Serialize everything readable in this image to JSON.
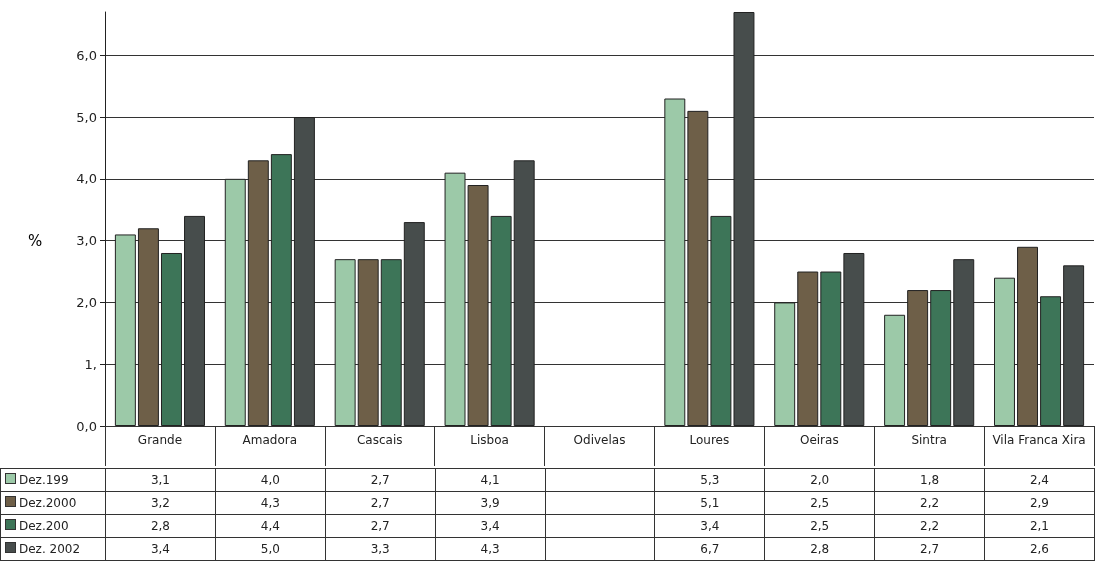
{
  "chart_data": {
    "type": "bar",
    "ylabel": "%",
    "categories": [
      "Grande",
      "Amadora",
      "Cascais",
      "Lisboa",
      "Odivelas",
      "Loures",
      "Oeiras",
      "Sintra",
      "Vila Franca Xira"
    ],
    "series": [
      {
        "name": "Dez.199",
        "color": "#9cc9a8",
        "values": [
          3.1,
          4.0,
          2.7,
          4.1,
          null,
          5.3,
          2.0,
          1.8,
          2.4
        ],
        "value_labels": [
          "3,1",
          "4,0",
          "2,7",
          "4,1",
          null,
          "5,3",
          "2,0",
          "1,8",
          "2,4"
        ]
      },
      {
        "name": "Dez.2000",
        "color": "#6e5f48",
        "values": [
          3.2,
          4.3,
          2.7,
          3.9,
          null,
          5.1,
          2.5,
          2.2,
          2.9
        ],
        "value_labels": [
          "3,2",
          "4,3",
          "2,7",
          "3,9",
          null,
          "5,1",
          "2,5",
          "2,2",
          "2,9"
        ]
      },
      {
        "name": "Dez.200",
        "color": "#3d7558",
        "values": [
          2.8,
          4.4,
          2.7,
          3.4,
          null,
          3.4,
          2.5,
          2.2,
          2.1
        ],
        "value_labels": [
          "2,8",
          "4,4",
          "2,7",
          "3,4",
          null,
          "3,4",
          "2,5",
          "2,2",
          "2,1"
        ]
      },
      {
        "name": "Dez. 2002",
        "color": "#474d4c",
        "values": [
          3.4,
          5.0,
          3.3,
          4.3,
          null,
          6.7,
          2.8,
          2.7,
          2.6
        ],
        "value_labels": [
          "3,4",
          "5,0",
          "3,3",
          "4,3",
          null,
          "6,7",
          "2,8",
          "2,7",
          "2,6"
        ]
      }
    ],
    "ylim": [
      0,
      6.7
    ],
    "yticks": [
      {
        "value": 0,
        "label": "0,0"
      },
      {
        "value": 1,
        "label": "1,"
      },
      {
        "value": 2,
        "label": "2,0"
      },
      {
        "value": 3,
        "label": "3,0"
      },
      {
        "value": 4,
        "label": "4,0"
      },
      {
        "value": 5,
        "label": "5,0"
      },
      {
        "value": 6,
        "label": "6,0"
      }
    ],
    "grid": "y",
    "legend": "bottom"
  }
}
